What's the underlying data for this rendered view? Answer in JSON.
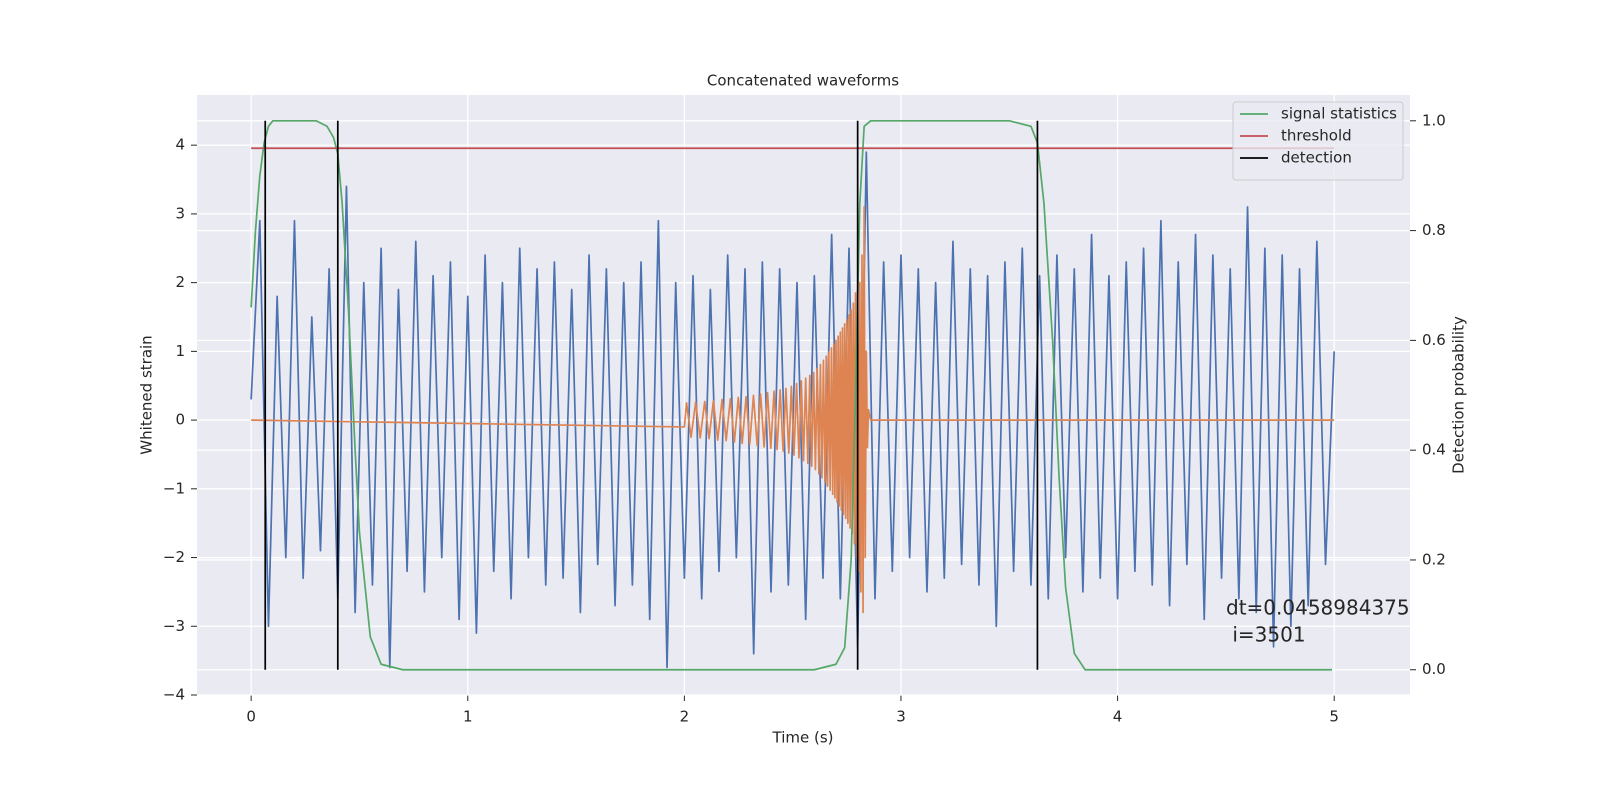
{
  "chart_data": {
    "type": "line",
    "title": "Concatenated waveforms",
    "xlabel": "Time (s)",
    "ylabel": "Whitened strain",
    "y2label": "Detection probability",
    "xlim": [
      -0.25,
      5.35
    ],
    "ylim": [
      -4,
      4.73
    ],
    "y2lim": [
      -0.046,
      1.047
    ],
    "xticks": [
      0,
      1,
      2,
      3,
      4,
      5
    ],
    "yticks": [
      {
        "value": -4,
        "label": "−4"
      },
      {
        "value": -3,
        "label": "−3"
      },
      {
        "value": -2,
        "label": "−2"
      },
      {
        "value": -1,
        "label": "−1"
      },
      0,
      1,
      2,
      3,
      4
    ],
    "y2ticks": [
      {
        "value": 0,
        "label": "0.0"
      },
      0.2,
      0.4,
      0.6,
      0.8,
      {
        "value": 1,
        "label": "1.0"
      }
    ],
    "grid": true,
    "legend": "upper right",
    "series": [
      {
        "color": "#4c72b0",
        "x": [
          0,
          0.04,
          0.08,
          0.12,
          0.16,
          0.2,
          0.24,
          0.28,
          0.32,
          0.36,
          0.4,
          0.44,
          0.48,
          0.52,
          0.56,
          0.6,
          0.64,
          0.68,
          0.72,
          0.76,
          0.8,
          0.84,
          0.88,
          0.92,
          0.96,
          1.0,
          1.04,
          1.08,
          1.12,
          1.16,
          1.2,
          1.24,
          1.28,
          1.32,
          1.36,
          1.4,
          1.44,
          1.48,
          1.52,
          1.56,
          1.6,
          1.64,
          1.68,
          1.72,
          1.76,
          1.8,
          1.84,
          1.88,
          1.92,
          1.96,
          2.0,
          2.04,
          2.08,
          2.12,
          2.16,
          2.2,
          2.24,
          2.28,
          2.32,
          2.36,
          2.4,
          2.44,
          2.48,
          2.52,
          2.56,
          2.6,
          2.64,
          2.68,
          2.72,
          2.76,
          2.8,
          2.84,
          2.88,
          2.92,
          2.96,
          3.0,
          3.04,
          3.08,
          3.12,
          3.16,
          3.2,
          3.24,
          3.28,
          3.32,
          3.36,
          3.4,
          3.44,
          3.48,
          3.52,
          3.56,
          3.6,
          3.64,
          3.68,
          3.72,
          3.76,
          3.8,
          3.84,
          3.88,
          3.92,
          3.96,
          4.0,
          4.04,
          4.08,
          4.12,
          4.16,
          4.2,
          4.24,
          4.28,
          4.32,
          4.36,
          4.4,
          4.44,
          4.48,
          4.52,
          4.56,
          4.6,
          4.64,
          4.68,
          4.72,
          4.76,
          4.8,
          4.84,
          4.88,
          4.92,
          4.96,
          5.0
        ],
        "values": [
          0.3,
          2.9,
          -3.0,
          1.8,
          -2.0,
          2.9,
          -2.3,
          1.5,
          -1.9,
          2.2,
          -2.6,
          3.4,
          -2.8,
          2.0,
          -2.4,
          2.5,
          -3.6,
          1.9,
          -2.2,
          2.6,
          -2.5,
          2.1,
          -2.0,
          2.3,
          -2.9,
          1.8,
          -3.1,
          2.4,
          -2.2,
          2.0,
          -2.6,
          2.5,
          -2.0,
          2.2,
          -2.4,
          2.3,
          -2.3,
          1.9,
          -2.8,
          2.4,
          -2.1,
          2.2,
          -2.7,
          2.0,
          -2.4,
          2.3,
          -2.9,
          2.9,
          -3.6,
          2.0,
          -2.3,
          2.1,
          -2.6,
          1.9,
          -2.2,
          2.4,
          -2.0,
          2.2,
          -3.4,
          2.3,
          -2.5,
          2.2,
          -2.4,
          2.0,
          -2.9,
          2.1,
          -2.3,
          2.7,
          -2.6,
          2.5,
          -3.3,
          3.9,
          -2.6,
          2.3,
          -2.2,
          2.4,
          -2.0,
          2.2,
          -2.5,
          2.0,
          -2.3,
          2.6,
          -2.1,
          2.2,
          -2.4,
          2.1,
          -3.0,
          2.3,
          -2.2,
          2.5,
          -2.4,
          2.1,
          -2.6,
          2.4,
          -2.0,
          2.2,
          -2.5,
          2.7,
          -2.3,
          2.1,
          -2.6,
          2.3,
          -2.2,
          2.5,
          -2.4,
          2.9,
          -2.7,
          2.3,
          -2.1,
          2.7,
          -2.9,
          2.4,
          -2.3,
          2.2,
          -2.6,
          3.1,
          -2.8,
          2.5,
          -3.3,
          2.4,
          -3.0,
          2.2,
          -2.7,
          2.6,
          -2.1,
          1.0
        ]
      },
      {
        "color": "#dd8452",
        "x": [
          0,
          2.0,
          2.01,
          2.031,
          2.052,
          2.073,
          2.094,
          2.114,
          2.134,
          2.154,
          2.174,
          2.193,
          2.212,
          2.231,
          2.249,
          2.267,
          2.285,
          2.302,
          2.319,
          2.336,
          2.352,
          2.368,
          2.384,
          2.399,
          2.414,
          2.428,
          2.442,
          2.456,
          2.469,
          2.482,
          2.494,
          2.506,
          2.518,
          2.529,
          2.54,
          2.55,
          2.56,
          2.57,
          2.579,
          2.588,
          2.597,
          2.605,
          2.613,
          2.621,
          2.628,
          2.635,
          2.642,
          2.649,
          2.655,
          2.661,
          2.667,
          2.673,
          2.679,
          2.685,
          2.69,
          2.695,
          2.7,
          2.705,
          2.71,
          2.715,
          2.72,
          2.725,
          2.73,
          2.735,
          2.74,
          2.745,
          2.75,
          2.755,
          2.76,
          2.765,
          2.77,
          2.775,
          2.78,
          2.785,
          2.79,
          2.795,
          2.8,
          2.805,
          2.81,
          2.815,
          2.82,
          2.825,
          2.83,
          2.835,
          2.84,
          2.845,
          2.85,
          2.86,
          5.0
        ],
        "values": [
          0,
          -0.1,
          0.25,
          -0.25,
          0.26,
          -0.26,
          0.27,
          -0.27,
          0.28,
          -0.29,
          0.3,
          -0.3,
          0.31,
          -0.32,
          0.33,
          -0.34,
          0.34,
          -0.35,
          0.36,
          -0.37,
          0.38,
          -0.39,
          0.4,
          -0.41,
          0.42,
          -0.43,
          0.44,
          -0.45,
          0.46,
          -0.48,
          0.49,
          -0.51,
          0.53,
          -0.55,
          0.57,
          -0.59,
          0.61,
          -0.63,
          0.65,
          -0.67,
          0.69,
          -0.72,
          0.75,
          -0.78,
          0.81,
          -0.84,
          0.87,
          -0.9,
          0.93,
          -0.96,
          0.99,
          -1.02,
          1.05,
          -1.08,
          1.1,
          -1.13,
          1.16,
          -1.19,
          1.22,
          -1.25,
          1.28,
          -1.31,
          1.34,
          -1.37,
          1.4,
          -1.43,
          1.46,
          -1.5,
          1.53,
          -1.57,
          1.6,
          -1.65,
          1.7,
          -1.8,
          1.85,
          -2.0,
          1.9,
          -2.2,
          2.0,
          -2.5,
          2.4,
          -2.8,
          3.1,
          -2.0,
          1.0,
          -0.4,
          0.15,
          0.0,
          0.0
        ]
      },
      {
        "name": "signal statistics",
        "color": "#55a868",
        "axis": "y2",
        "x": [
          0,
          0.02,
          0.04,
          0.06,
          0.08,
          0.1,
          0.15,
          0.2,
          0.3,
          0.35,
          0.38,
          0.4,
          0.42,
          0.45,
          0.48,
          0.5,
          0.55,
          0.6,
          0.7,
          1.0,
          2.0,
          2.6,
          2.7,
          2.74,
          2.77,
          2.79,
          2.81,
          2.83,
          2.86,
          2.9,
          3.0,
          3.5,
          3.6,
          3.63,
          3.66,
          3.7,
          3.73,
          3.76,
          3.8,
          3.85,
          4.0,
          4.99
        ],
        "values": [
          0.66,
          0.8,
          0.9,
          0.96,
          0.99,
          1.0,
          1.0,
          1.0,
          1.0,
          0.99,
          0.97,
          0.94,
          0.85,
          0.65,
          0.4,
          0.25,
          0.06,
          0.01,
          0.0,
          0.0,
          0.0,
          0.0,
          0.01,
          0.04,
          0.2,
          0.5,
          0.85,
          0.99,
          1.0,
          1.0,
          1.0,
          1.0,
          0.99,
          0.96,
          0.85,
          0.6,
          0.35,
          0.15,
          0.03,
          0.0,
          0.0,
          0.0
        ]
      },
      {
        "name": "threshold",
        "color": "#c44e52",
        "axis": "y2",
        "x": [
          0,
          5
        ],
        "values": [
          0.95,
          0.95
        ]
      }
    ],
    "detection": {
      "name": "detection",
      "color": "#000000",
      "axis": "y2",
      "x": [
        0.065,
        0.4,
        2.8,
        3.63
      ],
      "ymin": 0,
      "ymax": 1
    },
    "annotation": [
      "dt=0.0458984375",
      " i=3501"
    ]
  }
}
